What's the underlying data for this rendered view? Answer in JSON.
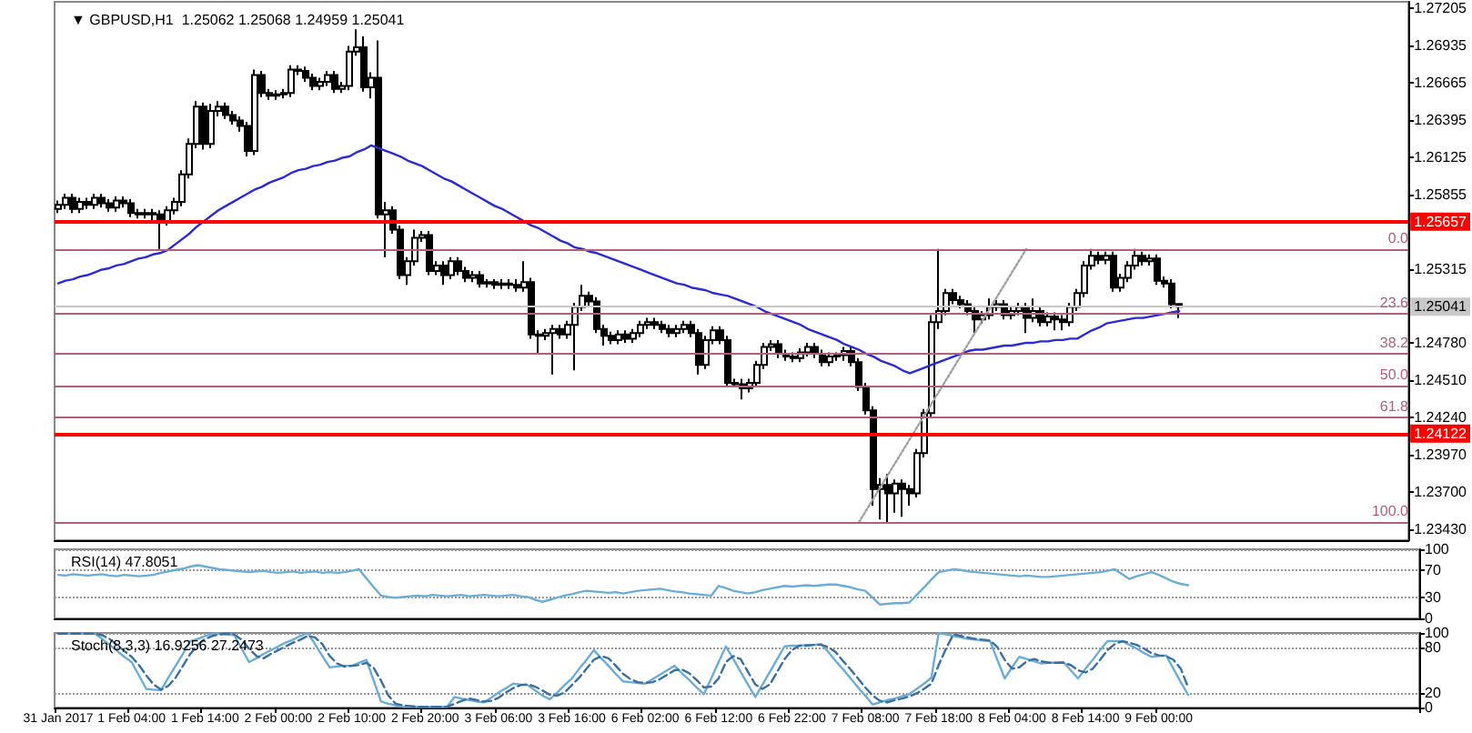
{
  "chart_data": [
    {
      "type": "candlestick",
      "title": "▼ GBPUSD,H1  1.25062 1.25068 1.24959 1.25041",
      "categories": [
        null,
        null,
        null,
        null,
        null,
        null,
        null,
        null,
        null,
        null,
        null,
        null,
        null,
        null,
        null,
        null,
        null,
        null,
        null,
        null,
        null,
        null,
        null,
        null,
        null,
        null,
        null,
        null,
        null,
        null,
        null,
        null,
        null,
        null,
        null,
        null,
        null,
        null,
        null,
        null,
        null,
        null,
        null,
        null,
        null,
        null,
        null,
        null,
        null,
        null,
        null,
        null,
        null,
        null,
        null,
        null,
        null,
        null,
        null,
        null,
        null,
        null,
        null,
        null,
        null,
        null,
        null,
        null,
        null,
        null,
        null,
        null,
        null,
        null,
        null,
        null,
        null,
        null,
        null,
        null,
        null,
        null,
        null,
        null,
        null,
        null,
        null,
        null,
        null,
        null,
        null,
        null,
        null,
        null,
        null,
        null,
        null,
        null,
        null,
        null,
        null,
        null,
        null,
        null,
        null,
        null,
        null,
        null,
        null,
        null,
        null,
        null,
        null,
        null,
        null,
        null,
        null,
        null,
        null,
        null,
        null,
        null,
        null,
        null,
        null,
        null,
        null,
        null,
        null,
        null,
        null,
        null,
        null,
        null,
        null,
        null,
        null,
        null,
        null,
        null,
        null,
        null,
        null,
        null,
        null,
        null,
        null,
        null,
        null,
        null,
        null,
        null,
        null,
        null,
        null
      ],
      "annotations": [
        {
          "text": "0.0",
          "y": 1.2546
        },
        {
          "text": "23.6",
          "y": 1.2499
        },
        {
          "text": "38.2",
          "y": 1.247
        },
        {
          "text": "50.0",
          "y": 1.2447
        },
        {
          "text": "61.8",
          "y": 1.2424
        },
        {
          "text": "100.0",
          "y": 1.2348
        }
      ],
      "ohlc": [
        [
          1.2575,
          1.2581,
          1.2572,
          1.2578
        ],
        [
          1.2578,
          1.2586,
          1.2575,
          1.2583
        ],
        [
          1.2583,
          1.2586,
          1.2572,
          1.2575
        ],
        [
          1.2575,
          1.2583,
          1.2572,
          1.258
        ],
        [
          1.258,
          1.2583,
          1.2575,
          1.2578
        ],
        [
          1.2578,
          1.2586,
          1.2575,
          1.2583
        ],
        [
          1.2583,
          1.2586,
          1.2576,
          1.2579
        ],
        [
          1.2579,
          1.2582,
          1.2573,
          1.2576
        ],
        [
          1.2576,
          1.2584,
          1.2573,
          1.2581
        ],
        [
          1.2581,
          1.2584,
          1.2576,
          1.2579
        ],
        [
          1.2579,
          1.2582,
          1.2569,
          1.2572
        ],
        [
          1.2572,
          1.2575,
          1.2568,
          1.2571
        ],
        [
          1.2571,
          1.2575,
          1.2568,
          1.2572
        ],
        [
          1.2572,
          1.2575,
          1.2565,
          1.2571
        ],
        [
          1.2571,
          1.2574,
          1.2546,
          1.2566
        ],
        [
          1.2566,
          1.2577,
          1.2563,
          1.2574
        ],
        [
          1.2574,
          1.2583,
          1.2571,
          1.258
        ],
        [
          1.258,
          1.2603,
          1.2577,
          1.26
        ],
        [
          1.26,
          1.2626,
          1.2597,
          1.2622
        ],
        [
          1.2622,
          1.2653,
          1.2619,
          1.2649
        ],
        [
          1.2649,
          1.2652,
          1.2618,
          1.2622
        ],
        [
          1.2622,
          1.2651,
          1.2619,
          1.2646
        ],
        [
          1.2646,
          1.2653,
          1.2642,
          1.2649
        ],
        [
          1.2649,
          1.2652,
          1.264,
          1.2643
        ],
        [
          1.2643,
          1.2646,
          1.2636,
          1.2639
        ],
        [
          1.2639,
          1.2642,
          1.2631,
          1.2635
        ],
        [
          1.2635,
          1.2638,
          1.2613,
          1.2617
        ],
        [
          1.2617,
          1.2676,
          1.2614,
          1.2672
        ],
        [
          1.2672,
          1.2675,
          1.2656,
          1.2659
        ],
        [
          1.2659,
          1.2662,
          1.2654,
          1.2657
        ],
        [
          1.2657,
          1.2661,
          1.2654,
          1.2658
        ],
        [
          1.2658,
          1.2662,
          1.2655,
          1.2659
        ],
        [
          1.2659,
          1.2679,
          1.2656,
          1.2676
        ],
        [
          1.2676,
          1.2679,
          1.2672,
          1.2675
        ],
        [
          1.2675,
          1.2678,
          1.2667,
          1.267
        ],
        [
          1.267,
          1.2673,
          1.2661,
          1.2664
        ],
        [
          1.2664,
          1.267,
          1.2661,
          1.2667
        ],
        [
          1.2667,
          1.2675,
          1.2664,
          1.2672
        ],
        [
          1.2672,
          1.2675,
          1.2659,
          1.2662
        ],
        [
          1.2662,
          1.2667,
          1.2659,
          1.2664
        ],
        [
          1.2664,
          1.2693,
          1.2661,
          1.2689
        ],
        [
          1.2689,
          1.2705,
          1.2686,
          1.2692
        ],
        [
          1.2692,
          1.27,
          1.266,
          1.2663
        ],
        [
          1.2663,
          1.2674,
          1.2655,
          1.267
        ],
        [
          1.267,
          1.2697,
          1.2568,
          1.2571
        ],
        [
          1.2571,
          1.258,
          1.254,
          1.2574
        ],
        [
          1.2574,
          1.2577,
          1.2557,
          1.256
        ],
        [
          1.256,
          1.2563,
          1.2524,
          1.2527
        ],
        [
          1.2527,
          1.254,
          1.252,
          1.2537
        ],
        [
          1.2537,
          1.256,
          1.2534,
          1.2554
        ],
        [
          1.2554,
          1.2559,
          1.2551,
          1.2556
        ],
        [
          1.2556,
          1.2559,
          1.2527,
          1.253
        ],
        [
          1.253,
          1.2537,
          1.2527,
          1.2534
        ],
        [
          1.2534,
          1.2537,
          1.252,
          1.2527
        ],
        [
          1.2527,
          1.254,
          1.2524,
          1.2537
        ],
        [
          1.2537,
          1.254,
          1.2527,
          1.253
        ],
        [
          1.253,
          1.2533,
          1.2522,
          1.2525
        ],
        [
          1.2525,
          1.253,
          1.2522,
          1.2527
        ],
        [
          1.2527,
          1.253,
          1.2518,
          1.2521
        ],
        [
          1.2521,
          1.2524,
          1.2518,
          1.2522
        ],
        [
          1.2522,
          1.2524,
          1.2517,
          1.252
        ],
        [
          1.252,
          1.2524,
          1.2517,
          1.2521
        ],
        [
          1.2521,
          1.2524,
          1.2517,
          1.252
        ],
        [
          1.252,
          1.2524,
          1.2515,
          1.2518
        ],
        [
          1.2518,
          1.2537,
          1.2515,
          1.2522
        ],
        [
          1.2522,
          1.2525,
          1.2481,
          1.2484
        ],
        [
          1.2484,
          1.2487,
          1.247,
          1.2483
        ],
        [
          1.2483,
          1.2488,
          1.248,
          1.2485
        ],
        [
          1.2485,
          1.2491,
          1.2455,
          1.2488
        ],
        [
          1.2488,
          1.2491,
          1.2481,
          1.2484
        ],
        [
          1.2484,
          1.2494,
          1.2481,
          1.2491
        ],
        [
          1.2491,
          1.2507,
          1.2458,
          1.2504
        ],
        [
          1.2504,
          1.252,
          1.2501,
          1.2512
        ],
        [
          1.2512,
          1.2515,
          1.2505,
          1.2508
        ],
        [
          1.2508,
          1.2511,
          1.2485,
          1.2488
        ],
        [
          1.2488,
          1.2491,
          1.2476,
          1.2483
        ],
        [
          1.2483,
          1.2486,
          1.2477,
          1.248
        ],
        [
          1.248,
          1.2487,
          1.2477,
          1.2484
        ],
        [
          1.2484,
          1.2487,
          1.2478,
          1.2481
        ],
        [
          1.2481,
          1.2488,
          1.2478,
          1.2485
        ],
        [
          1.2485,
          1.2494,
          1.2482,
          1.2491
        ],
        [
          1.2491,
          1.2496,
          1.2488,
          1.2493
        ],
        [
          1.2493,
          1.2496,
          1.2488,
          1.2491
        ],
        [
          1.2491,
          1.2494,
          1.2485,
          1.2488
        ],
        [
          1.2488,
          1.2491,
          1.2482,
          1.2485
        ],
        [
          1.2485,
          1.2491,
          1.2482,
          1.2488
        ],
        [
          1.2488,
          1.2494,
          1.2485,
          1.2491
        ],
        [
          1.2491,
          1.2494,
          1.2482,
          1.2485
        ],
        [
          1.2485,
          1.2488,
          1.2455,
          1.2462
        ],
        [
          1.2462,
          1.2483,
          1.2459,
          1.248
        ],
        [
          1.248,
          1.249,
          1.2477,
          1.2487
        ],
        [
          1.2487,
          1.249,
          1.2477,
          1.248
        ],
        [
          1.248,
          1.2483,
          1.2446,
          1.2449
        ],
        [
          1.2449,
          1.2452,
          1.2446,
          1.2448
        ],
        [
          1.2448,
          1.2452,
          1.2437,
          1.2445
        ],
        [
          1.2445,
          1.2452,
          1.2442,
          1.2449
        ],
        [
          1.2449,
          1.2465,
          1.2446,
          1.2462
        ],
        [
          1.2462,
          1.2478,
          1.2459,
          1.2475
        ],
        [
          1.2475,
          1.248,
          1.2472,
          1.2477
        ],
        [
          1.2477,
          1.248,
          1.2467,
          1.247
        ],
        [
          1.247,
          1.2473,
          1.2465,
          1.2468
        ],
        [
          1.2468,
          1.2471,
          1.2464,
          1.2467
        ],
        [
          1.2467,
          1.2474,
          1.2464,
          1.2471
        ],
        [
          1.2471,
          1.2478,
          1.2468,
          1.2475
        ],
        [
          1.2475,
          1.2478,
          1.2467,
          1.247
        ],
        [
          1.247,
          1.2473,
          1.2461,
          1.2464
        ],
        [
          1.2464,
          1.2471,
          1.2461,
          1.2468
        ],
        [
          1.2468,
          1.2471,
          1.2465,
          1.2469
        ],
        [
          1.2469,
          1.2475,
          1.2465,
          1.2472
        ],
        [
          1.2472,
          1.2475,
          1.2461,
          1.2464
        ],
        [
          1.2464,
          1.2467,
          1.2443,
          1.2446
        ],
        [
          1.2446,
          1.2449,
          1.2426,
          1.2429
        ],
        [
          1.2429,
          1.2432,
          1.236,
          1.2372
        ],
        [
          1.2372,
          1.238,
          1.235,
          1.2375
        ],
        [
          1.2375,
          1.2383,
          1.2348,
          1.2369
        ],
        [
          1.2369,
          1.2379,
          1.2355,
          1.2376
        ],
        [
          1.2376,
          1.2379,
          1.2352,
          1.2372
        ],
        [
          1.2372,
          1.2375,
          1.236,
          1.2369
        ],
        [
          1.2369,
          1.2401,
          1.2366,
          1.2398
        ],
        [
          1.2398,
          1.243,
          1.2395,
          1.2427
        ],
        [
          1.2427,
          1.2498,
          1.2424,
          1.2493
        ],
        [
          1.2493,
          1.2546,
          1.2488,
          1.2501
        ],
        [
          1.2501,
          1.2517,
          1.2498,
          1.2514
        ],
        [
          1.2514,
          1.2517,
          1.2506,
          1.2509
        ],
        [
          1.2509,
          1.2512,
          1.2503,
          1.2506
        ],
        [
          1.2506,
          1.2509,
          1.2498,
          1.2501
        ],
        [
          1.2501,
          1.2504,
          1.2485,
          1.2495
        ],
        [
          1.2495,
          1.2501,
          1.2492,
          1.2498
        ],
        [
          1.2498,
          1.251,
          1.2495,
          1.2504
        ],
        [
          1.2504,
          1.2509,
          1.2501,
          1.2506
        ],
        [
          1.2506,
          1.2509,
          1.2495,
          1.2498
        ],
        [
          1.2498,
          1.2504,
          1.2495,
          1.2501
        ],
        [
          1.2501,
          1.2507,
          1.2498,
          1.2504
        ],
        [
          1.2504,
          1.2507,
          1.2485,
          1.2496
        ],
        [
          1.2496,
          1.251,
          1.2493,
          1.2501
        ],
        [
          1.2501,
          1.2504,
          1.249,
          1.2493
        ],
        [
          1.2493,
          1.25,
          1.249,
          1.2497
        ],
        [
          1.2497,
          1.25,
          1.2487,
          1.2495
        ],
        [
          1.2495,
          1.2498,
          1.2487,
          1.2493
        ],
        [
          1.2493,
          1.2507,
          1.249,
          1.2504
        ],
        [
          1.2504,
          1.2517,
          1.2501,
          1.2514
        ],
        [
          1.2514,
          1.2537,
          1.2511,
          1.2534
        ],
        [
          1.2534,
          1.2546,
          1.2531,
          1.2541
        ],
        [
          1.2541,
          1.2544,
          1.2535,
          1.2538
        ],
        [
          1.2538,
          1.2544,
          1.2535,
          1.2541
        ],
        [
          1.2541,
          1.2544,
          1.2515,
          1.2518
        ],
        [
          1.2518,
          1.2528,
          1.2515,
          1.2525
        ],
        [
          1.2525,
          1.2537,
          1.2522,
          1.2534
        ],
        [
          1.2534,
          1.2546,
          1.2531,
          1.2541
        ],
        [
          1.2541,
          1.2544,
          1.2534,
          1.2537
        ],
        [
          1.2537,
          1.2542,
          1.2534,
          1.2539
        ],
        [
          1.2539,
          1.2542,
          1.252,
          1.2523
        ],
        [
          1.2523,
          1.2526,
          1.2518,
          1.2521
        ],
        [
          1.2521,
          1.2524,
          1.2503,
          1.2506
        ],
        [
          1.25062,
          1.25068,
          1.24959,
          1.25041
        ]
      ],
      "series": [
        {
          "type": "line",
          "color": "#2b2bd0",
          "values": [
            1.2521,
            1.2523,
            1.2524,
            1.2526,
            1.2527,
            1.2529,
            1.2531,
            1.2532,
            1.2534,
            1.2535,
            1.2537,
            1.2539,
            1.254,
            1.2542,
            1.2543,
            1.2545,
            1.2549,
            1.2553,
            1.2557,
            1.2562,
            1.2566,
            1.257,
            1.2574,
            1.2577,
            1.258,
            1.2583,
            1.2586,
            1.2589,
            1.2591,
            1.2594,
            1.2596,
            1.2598,
            1.2601,
            1.2603,
            1.2604,
            1.2606,
            1.2607,
            1.2609,
            1.261,
            1.2612,
            1.2613,
            1.2616,
            1.2618,
            1.2621,
            1.2619,
            1.2617,
            1.2615,
            1.2613,
            1.261,
            1.2608,
            1.2606,
            1.2603,
            1.26,
            1.2597,
            1.2595,
            1.2592,
            1.2589,
            1.2586,
            1.2583,
            1.258,
            1.2577,
            1.2575,
            1.2572,
            1.2569,
            1.2566,
            1.2563,
            1.2561,
            1.2558,
            1.2555,
            1.2552,
            1.255,
            1.2547,
            1.2546,
            1.2544,
            1.2543,
            1.2541,
            1.2539,
            1.2537,
            1.2535,
            1.2533,
            1.2531,
            1.2529,
            1.2527,
            1.2525,
            1.2523,
            1.2521,
            1.252,
            1.2518,
            1.2517,
            1.2516,
            1.2514,
            1.2513,
            1.2512,
            1.251,
            1.2508,
            1.2506,
            1.2504,
            1.2501,
            1.2499,
            1.2497,
            1.2495,
            1.2493,
            1.2491,
            1.2488,
            1.2486,
            1.2484,
            1.2482,
            1.248,
            1.2477,
            1.2475,
            1.2473,
            1.247,
            1.2468,
            1.2465,
            1.2463,
            1.2461,
            1.2458,
            1.2456,
            1.2458,
            1.246,
            1.2462,
            1.2464,
            1.2466,
            1.2468,
            1.247,
            1.2472,
            1.2473,
            1.2473,
            1.2474,
            1.2475,
            1.2476,
            1.2476,
            1.2477,
            1.2478,
            1.2478,
            1.2479,
            1.2479,
            1.248,
            1.248,
            1.2481,
            1.2481,
            1.2484,
            1.2487,
            1.2489,
            1.2492,
            1.2493,
            1.2494,
            1.2495,
            1.2496,
            1.2496,
            1.2497,
            1.2498,
            1.2499,
            1.25,
            1.2501
          ]
        },
        {
          "type": "line",
          "color": "#a0a0a0",
          "line_style": "dotted",
          "values": [
            null,
            null,
            null,
            null,
            null,
            null,
            null,
            null,
            null,
            null,
            null,
            null,
            null,
            null,
            null,
            null,
            null,
            null,
            null,
            null,
            null,
            null,
            null,
            null,
            null,
            null,
            null,
            null,
            null,
            null,
            null,
            null,
            null,
            null,
            null,
            null,
            null,
            null,
            null,
            null,
            null,
            null,
            null,
            null,
            null,
            null,
            null,
            null,
            null,
            null,
            null,
            null,
            null,
            null,
            null,
            null,
            null,
            null,
            null,
            null,
            null,
            null,
            null,
            null,
            null,
            null,
            null,
            null,
            null,
            null,
            null,
            null,
            null,
            null,
            null,
            null,
            null,
            null,
            null,
            null,
            null,
            null,
            null,
            null,
            null,
            null,
            null,
            null,
            null,
            null,
            null,
            null,
            null,
            null,
            null,
            null,
            null,
            null,
            null,
            null,
            null,
            null,
            null,
            null,
            null,
            null,
            null,
            null,
            null,
            null,
            1.2348,
            null,
            null,
            null,
            null,
            null,
            null,
            null,
            null,
            null,
            null,
            null,
            null,
            null,
            null,
            null,
            null,
            null,
            null,
            null,
            null,
            null,
            null,
            1.2546,
            null,
            null,
            null,
            null,
            null,
            null,
            null,
            null,
            null,
            null,
            null,
            null,
            null,
            null,
            null,
            null,
            null,
            null,
            null,
            null,
            null
          ]
        }
      ],
      "ylim": [
        1.2335,
        1.2725
      ],
      "yticks": [
        {
          "value": 1.2343,
          "label": "1.23430"
        },
        {
          "value": 1.237,
          "label": "1.23700"
        },
        {
          "value": 1.2397,
          "label": "1.23970"
        },
        {
          "value": 1.2424,
          "label": "1.24240"
        },
        {
          "value": 1.2451,
          "label": "1.24510"
        },
        {
          "value": 1.2478,
          "label": "1.24780"
        },
        {
          "value": 1.25315,
          "label": "1.25315"
        },
        {
          "value": 1.25855,
          "label": "1.25855"
        },
        {
          "value": 1.26125,
          "label": "1.26125"
        },
        {
          "value": 1.26395,
          "label": "1.26395"
        },
        {
          "value": 1.26665,
          "label": "1.26665"
        },
        {
          "value": 1.26935,
          "label": "1.26935"
        },
        {
          "value": 1.27205,
          "label": "1.27205"
        }
      ],
      "ref_lines": [
        {
          "axis": "y",
          "value": 1.25657,
          "label": "1.25657",
          "color": "#ff0000"
        },
        {
          "axis": "y",
          "value": 1.24122,
          "label": "1.24122",
          "color": "#ff0000"
        },
        {
          "axis": "y",
          "value": 1.25041,
          "label": "1.25041",
          "color": "#c8c8c8"
        },
        {
          "axis": "y",
          "value": 1.2546,
          "color": "#b0607e"
        },
        {
          "axis": "y",
          "value": 1.2499,
          "color": "#b0607e"
        },
        {
          "axis": "y",
          "value": 1.247,
          "color": "#b0607e"
        },
        {
          "axis": "y",
          "value": 1.2447,
          "color": "#b0607e"
        },
        {
          "axis": "y",
          "value": 1.2424,
          "color": "#b0607e"
        },
        {
          "axis": "y",
          "value": 1.2348,
          "color": "#b0607e"
        }
      ],
      "marker": "none",
      "tick_labels": "y"
    },
    {
      "type": "line",
      "title": "RSI(14) 47.8051",
      "categories": [
        null,
        null,
        null,
        null,
        null,
        null,
        null,
        null,
        null,
        null,
        null,
        null,
        null,
        null,
        null,
        null,
        null,
        null,
        null,
        null,
        null,
        null,
        null,
        null,
        null,
        null,
        null,
        null,
        null,
        null,
        null,
        null,
        null,
        null,
        null,
        null,
        null,
        null,
        null,
        null,
        null,
        null,
        null,
        null,
        null,
        null,
        null,
        null,
        null,
        null,
        null,
        null,
        null,
        null,
        null,
        null,
        null,
        null,
        null,
        null,
        null,
        null,
        null,
        null,
        null,
        null,
        null,
        null,
        null,
        null,
        null,
        null,
        null,
        null,
        null,
        null,
        null,
        null,
        null,
        null,
        null,
        null,
        null,
        null,
        null,
        null,
        null,
        null,
        null,
        null,
        null,
        null,
        null,
        null,
        null,
        null,
        null,
        null,
        null,
        null,
        null,
        null,
        null,
        null,
        null,
        null,
        null,
        null,
        null,
        null,
        null,
        null,
        null,
        null,
        null,
        null,
        null,
        null,
        null,
        null,
        null,
        null,
        null,
        null,
        null,
        null,
        null,
        null,
        null,
        null,
        null,
        null,
        null,
        null,
        null,
        null,
        null,
        null,
        null,
        null,
        null,
        null,
        null,
        null,
        null,
        null,
        null,
        null,
        null,
        null,
        null,
        null,
        null,
        null,
        null
      ],
      "series": [
        {
          "color": "#6aaed6",
          "values": [
            63,
            62,
            64,
            63,
            62,
            63,
            64,
            62,
            61,
            63,
            62,
            61,
            62,
            63,
            66,
            68,
            70,
            72,
            75,
            77,
            75,
            73,
            71,
            70,
            69,
            68,
            67,
            68,
            69,
            67,
            66,
            67,
            68,
            66,
            67,
            68,
            66,
            67,
            66,
            67,
            69,
            71,
            58,
            45,
            33,
            31,
            30,
            31,
            32,
            33,
            32,
            34,
            33,
            32,
            33,
            34,
            32,
            33,
            34,
            33,
            32,
            33,
            34,
            32,
            31,
            27,
            24,
            27,
            30,
            33,
            35,
            38,
            40,
            39,
            38,
            37,
            38,
            36,
            38,
            40,
            41,
            42,
            43,
            41,
            39,
            38,
            36,
            35,
            34,
            33,
            47,
            44,
            40,
            38,
            36,
            38,
            41,
            43,
            45,
            47,
            46,
            47,
            48,
            47,
            48,
            49,
            49,
            47,
            45,
            42,
            40,
            30,
            20,
            21,
            22,
            22,
            23,
            34,
            45,
            56,
            67,
            69,
            71,
            70,
            68,
            67,
            66,
            65,
            64,
            63,
            62,
            61,
            62,
            61,
            60,
            60,
            61,
            62,
            63,
            64,
            65,
            66,
            67,
            69,
            71,
            64,
            57,
            61,
            64,
            67,
            63,
            58,
            53,
            50,
            48
          ]
        }
      ],
      "ylim": [
        0,
        100
      ],
      "yticks": [
        0,
        30,
        70,
        100
      ],
      "grid": "y",
      "marker": "none",
      "tick_labels": "y"
    },
    {
      "type": "line",
      "title": "Stoch(8,3,3) 16.9256 27.2473",
      "categories": [
        "31 Jan 2017",
        null,
        null,
        null,
        null,
        null,
        null,
        null,
        null,
        null,
        "1 Feb 04:00",
        null,
        null,
        null,
        null,
        null,
        null,
        null,
        null,
        null,
        "1 Feb 14:00",
        null,
        null,
        null,
        null,
        null,
        null,
        null,
        null,
        null,
        "2 Feb 00:00",
        null,
        null,
        null,
        null,
        null,
        null,
        null,
        null,
        null,
        "2 Feb 10:00",
        null,
        null,
        null,
        null,
        null,
        null,
        null,
        null,
        null,
        "2 Feb 20:00",
        null,
        null,
        null,
        null,
        null,
        null,
        null,
        null,
        null,
        "3 Feb 06:00",
        null,
        null,
        null,
        null,
        null,
        null,
        null,
        null,
        null,
        "3 Feb 16:00",
        null,
        null,
        null,
        null,
        null,
        null,
        null,
        null,
        null,
        "6 Feb 02:00",
        null,
        null,
        null,
        null,
        null,
        null,
        null,
        null,
        null,
        "6 Feb 12:00",
        null,
        null,
        null,
        null,
        null,
        null,
        null,
        null,
        null,
        "6 Feb 22:00",
        null,
        null,
        null,
        null,
        null,
        null,
        null,
        null,
        null,
        "7 Feb 08:00",
        null,
        null,
        null,
        null,
        null,
        null,
        null,
        null,
        null,
        "7 Feb 18:00",
        null,
        null,
        null,
        null,
        null,
        null,
        null,
        null,
        null,
        "8 Feb 04:00",
        null,
        null,
        null,
        null,
        null,
        null,
        null,
        null,
        null,
        "8 Feb 14:00",
        null,
        null,
        null,
        null,
        null,
        null,
        null,
        null,
        null,
        "9 Feb 00:00",
        null,
        null,
        null,
        null
      ],
      "series": [
        {
          "color": "#6aaed6",
          "values": [
            99,
            99,
            99,
            99,
            99,
            99,
            92,
            84,
            76,
            68,
            61,
            43,
            25,
            24,
            23,
            40,
            56,
            72,
            89,
            92,
            96,
            99,
            99,
            98,
            97,
            79,
            61,
            66,
            72,
            77,
            82,
            87,
            91,
            96,
            100,
            85,
            69,
            54,
            55,
            56,
            56,
            60,
            64,
            36,
            8,
            5,
            3,
            1,
            1,
            1,
            1,
            1,
            1,
            1,
            14,
            12,
            10,
            8,
            7,
            13,
            20,
            26,
            32,
            31,
            30,
            23,
            16,
            11,
            20,
            30,
            39,
            52,
            64,
            77,
            66,
            56,
            45,
            35,
            34,
            33,
            32,
            38,
            44,
            50,
            56,
            46,
            37,
            27,
            18,
            39,
            61,
            82,
            65,
            48,
            31,
            14,
            31,
            48,
            65,
            82,
            83,
            83,
            84,
            84,
            85,
            74,
            62,
            51,
            39,
            27,
            16,
            4,
            7,
            10,
            12,
            15,
            18,
            25,
            32,
            40,
            100,
            98,
            96,
            94,
            92,
            91,
            90,
            89,
            64,
            39,
            54,
            68,
            65,
            62,
            59,
            60,
            60,
            61,
            50,
            39,
            52,
            64,
            77,
            89,
            89,
            89,
            84,
            79,
            73,
            68,
            69,
            70,
            52,
            34,
            17
          ]
        },
        {
          "color": "#3c6e9e",
          "line_style": "dashed",
          "values": [
            99,
            99,
            99,
            99,
            99,
            99,
            97,
            92,
            84,
            76,
            68,
            57,
            43,
            31,
            24,
            29,
            40,
            56,
            72,
            84,
            92,
            96,
            98,
            99,
            98,
            91,
            79,
            69,
            66,
            72,
            77,
            82,
            87,
            91,
            96,
            94,
            85,
            69,
            59,
            55,
            56,
            57,
            60,
            53,
            36,
            16,
            5,
            3,
            2,
            1,
            1,
            1,
            1,
            1,
            5,
            9,
            12,
            10,
            8,
            9,
            13,
            20,
            26,
            30,
            31,
            28,
            23,
            17,
            16,
            20,
            30,
            40,
            52,
            64,
            69,
            66,
            56,
            45,
            38,
            34,
            33,
            34,
            38,
            44,
            50,
            51,
            46,
            37,
            27,
            28,
            39,
            61,
            69,
            65,
            48,
            31,
            25,
            31,
            48,
            65,
            77,
            83,
            83,
            84,
            84,
            81,
            74,
            62,
            51,
            39,
            27,
            16,
            9,
            7,
            10,
            12,
            15,
            19,
            25,
            32,
            57,
            79,
            98,
            96,
            94,
            92,
            91,
            90,
            81,
            64,
            52,
            54,
            62,
            65,
            62,
            60,
            60,
            60,
            57,
            50,
            47,
            52,
            64,
            77,
            85,
            89,
            87,
            84,
            79,
            73,
            70,
            69,
            64,
            52,
            27
          ]
        }
      ],
      "ylim": [
        0,
        100
      ],
      "yticks": [
        0,
        20,
        80,
        100
      ],
      "grid": "y",
      "marker": "none"
    }
  ]
}
